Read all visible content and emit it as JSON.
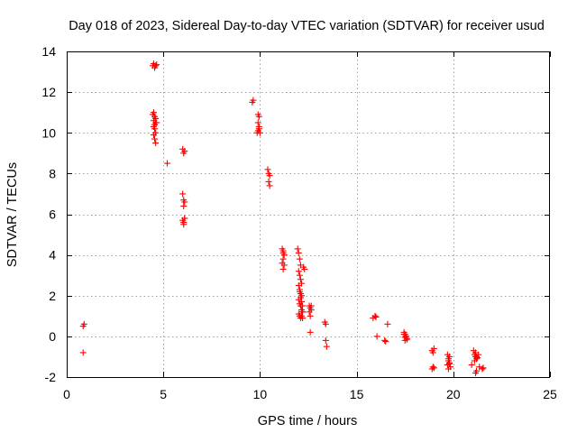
{
  "chart_data": {
    "type": "scatter",
    "title": "Day 018 of 2023, Sidereal Day-to-day VTEC variation (SDTVAR) for receiver usud",
    "xlabel": "GPS time / hours",
    "ylabel": "SDTVAR / TECUs",
    "xlim": [
      0,
      25
    ],
    "ylim": [
      -2,
      14
    ],
    "xticks": [
      0,
      5,
      10,
      15,
      20,
      25
    ],
    "yticks": [
      -2,
      0,
      2,
      4,
      6,
      8,
      10,
      12,
      14
    ],
    "grid": true,
    "marker": "+",
    "marker_color": "#ff0000",
    "series": [
      {
        "name": "SDTVAR",
        "x": [
          0.85,
          0.9,
          0.85,
          4.45,
          4.5,
          4.55,
          4.6,
          4.65,
          4.45,
          4.5,
          4.55,
          4.5,
          4.6,
          4.5,
          4.55,
          4.6,
          4.5,
          4.55,
          4.6,
          4.55,
          4.6,
          4.65,
          5.2,
          6.0,
          6.05,
          6.1,
          6.0,
          6.05,
          6.1,
          6.05,
          6.1,
          6.0,
          6.05,
          6.1,
          6.05,
          9.6,
          9.65,
          9.85,
          9.9,
          9.95,
          9.9,
          9.95,
          9.9,
          9.95,
          10.0,
          10.4,
          10.45,
          10.5,
          10.45,
          10.5,
          11.15,
          11.2,
          11.25,
          11.2,
          11.15,
          11.25,
          11.2,
          11.2,
          11.95,
          12.0,
          12.05,
          12.1,
          12.0,
          12.05,
          12.1,
          12.15,
          12.0,
          12.05,
          12.1,
          12.15,
          12.0,
          12.05,
          12.1,
          12.15,
          12.2,
          12.0,
          12.05,
          12.1,
          12.15,
          12.2,
          12.05,
          12.1,
          12.15,
          12.2,
          12.25,
          12.3,
          12.2,
          12.55,
          12.6,
          12.65,
          12.55,
          12.6,
          12.65,
          12.6,
          13.35,
          13.4,
          13.4,
          13.45,
          15.85,
          15.95,
          16.0,
          16.05,
          16.45,
          16.5,
          16.6,
          17.45,
          17.5,
          17.55,
          17.6,
          17.5,
          17.55,
          17.45,
          17.6,
          17.5,
          18.9,
          18.95,
          19.0,
          18.95,
          18.9,
          19.0,
          19.7,
          19.75,
          19.8,
          19.85,
          19.7,
          19.75,
          19.8,
          19.75,
          19.8,
          20.95,
          21.05,
          21.1,
          21.15,
          21.2,
          21.1,
          21.15,
          21.2,
          21.25,
          21.3,
          21.15,
          21.2,
          21.35,
          21.5,
          21.55
        ],
        "y": [
          0.5,
          0.6,
          -0.8,
          13.3,
          13.4,
          13.2,
          13.3,
          13.35,
          10.9,
          11.0,
          10.8,
          10.6,
          10.5,
          10.3,
          10.2,
          10.0,
          9.9,
          9.7,
          9.5,
          10.4,
          10.7,
          10.5,
          8.5,
          9.2,
          9.0,
          9.1,
          7.0,
          6.7,
          6.6,
          6.4,
          5.8,
          5.7,
          5.6,
          5.8,
          5.5,
          11.5,
          11.6,
          10.0,
          10.1,
          10.3,
          10.5,
          10.8,
          10.9,
          10.2,
          10.0,
          8.2,
          8.0,
          7.9,
          7.6,
          7.4,
          4.3,
          4.1,
          4.0,
          3.8,
          3.6,
          3.5,
          3.3,
          4.2,
          4.3,
          4.1,
          3.8,
          3.5,
          3.2,
          3.0,
          2.8,
          2.6,
          2.5,
          2.3,
          2.1,
          2.0,
          1.8,
          1.6,
          1.5,
          1.3,
          1.2,
          1.1,
          1.0,
          0.9,
          1.0,
          1.2,
          2.2,
          1.9,
          1.7,
          1.5,
          3.4,
          3.3,
          0.9,
          1.5,
          1.4,
          1.3,
          1.2,
          1.0,
          1.5,
          0.2,
          0.7,
          0.6,
          -0.2,
          -0.5,
          0.9,
          1.0,
          0.95,
          0.0,
          -0.2,
          -0.25,
          0.6,
          0.2,
          0.1,
          0.0,
          -0.1,
          -0.2,
          0.0,
          0.1,
          -0.15,
          -0.05,
          -0.7,
          -0.8,
          -0.6,
          -1.5,
          -1.6,
          -1.55,
          -0.9,
          -1.1,
          -1.3,
          -1.5,
          -1.4,
          -1.2,
          -1.0,
          -1.6,
          -1.35,
          -1.4,
          -0.7,
          -0.9,
          -1.0,
          -1.1,
          -1.2,
          -0.8,
          -1.0,
          -1.05,
          -0.9,
          -1.8,
          -1.7,
          -1.5,
          -1.6,
          -1.55
        ]
      }
    ]
  }
}
